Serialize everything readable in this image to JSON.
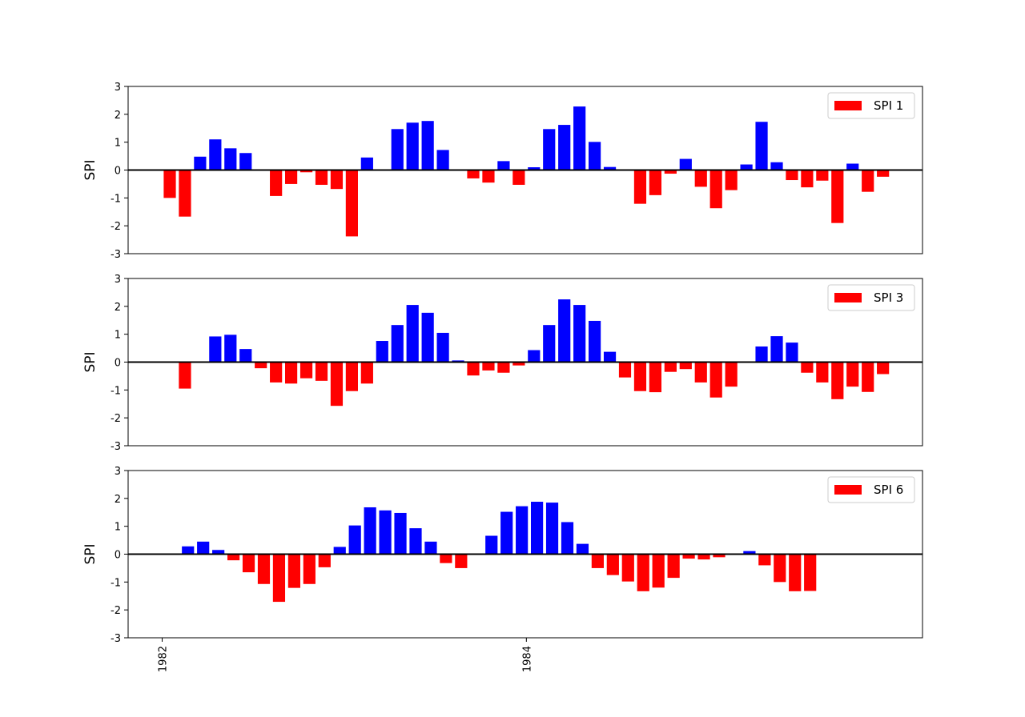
{
  "chart_data": {
    "type": "bar",
    "colors": {
      "positive": "#0000ff",
      "negative": "#ff0000",
      "zero_line": "#000000"
    },
    "x_tick_labels": [
      "1982",
      "1984"
    ],
    "x_ticks_index": [
      -0.5,
      23.5
    ],
    "panels": [
      {
        "ylabel": "SPI",
        "legend": "SPI 1",
        "legend_placement": "top-right",
        "ylim": [
          -3,
          3
        ],
        "yticks": [
          "3",
          "2",
          "1",
          "0",
          "-1",
          "-2",
          "-3"
        ],
        "values": [
          -1.0,
          -1.67,
          0.48,
          1.1,
          0.78,
          0.61,
          0.0,
          -0.93,
          -0.5,
          -0.08,
          -0.53,
          -0.68,
          -2.38,
          0.45,
          0.02,
          1.47,
          1.7,
          1.76,
          0.72,
          0.0,
          -0.3,
          -0.45,
          0.32,
          -0.53,
          0.1,
          1.47,
          1.62,
          2.28,
          1.01,
          0.11,
          0.0,
          -1.21,
          -0.9,
          -0.13,
          0.4,
          -0.6,
          -1.37,
          -0.72,
          0.2,
          1.73,
          0.28,
          -0.36,
          -0.62,
          -0.38,
          -1.9,
          0.23,
          -0.78,
          -0.24
        ]
      },
      {
        "ylabel": "SPI",
        "legend": "SPI 3",
        "legend_placement": "top-right",
        "ylim": [
          -3,
          3
        ],
        "yticks": [
          "3",
          "2",
          "1",
          "0",
          "-1",
          "-2",
          "-3"
        ],
        "values": [
          -0.95,
          0.0,
          0.92,
          0.98,
          0.47,
          -0.22,
          -0.73,
          -0.77,
          -0.58,
          -0.67,
          -1.57,
          -1.04,
          -0.77,
          0.76,
          1.33,
          2.05,
          1.77,
          1.05,
          0.06,
          -0.48,
          -0.3,
          -0.38,
          -0.12,
          0.43,
          1.33,
          2.25,
          2.05,
          1.48,
          0.37,
          -0.55,
          -1.04,
          -1.08,
          -0.35,
          -0.25,
          -0.73,
          -1.27,
          -0.88,
          0.0,
          0.56,
          0.93,
          0.7,
          -0.38,
          -0.73,
          -1.33,
          -0.88,
          -1.07,
          -0.43
        ]
      },
      {
        "ylabel": "SPI",
        "legend": "SPI 6",
        "legend_placement": "top-right",
        "ylim": [
          -3,
          3
        ],
        "yticks": [
          "3",
          "2",
          "1",
          "0",
          "-1",
          "-2",
          "-3"
        ],
        "values": [
          0.0,
          0.28,
          0.45,
          0.15,
          -0.22,
          -0.65,
          -1.07,
          -1.71,
          -1.21,
          -1.07,
          -0.47,
          0.26,
          1.03,
          1.68,
          1.57,
          1.48,
          0.93,
          0.45,
          -0.32,
          -0.5,
          0.0,
          0.66,
          1.52,
          1.72,
          1.88,
          1.85,
          1.15,
          0.37,
          -0.5,
          -0.75,
          -0.98,
          -1.33,
          -1.2,
          -0.85,
          -0.16,
          -0.19,
          -0.11,
          0.0,
          0.11,
          -0.4,
          -1.0,
          -1.33,
          -1.32
        ]
      }
    ]
  }
}
